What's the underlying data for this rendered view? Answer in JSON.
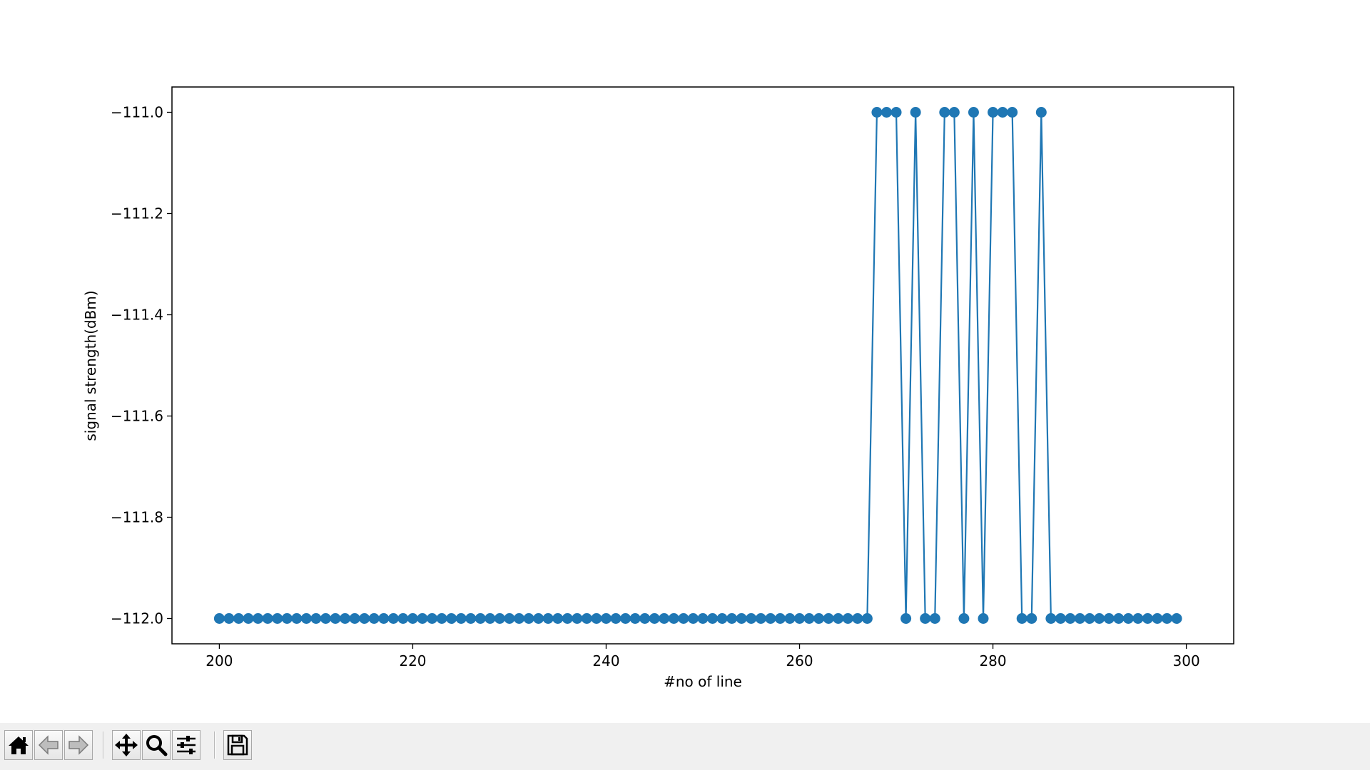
{
  "chart_data": {
    "type": "line",
    "title": "",
    "xlabel": "#no of line",
    "ylabel": "signal strength(dBm)",
    "xlim": [
      195.1,
      304.9
    ],
    "ylim": [
      -112.05,
      -110.95
    ],
    "xticks": [
      200,
      220,
      240,
      260,
      280,
      300
    ],
    "yticks": [
      -111.0,
      -111.2,
      -111.4,
      -111.6,
      -111.8,
      -112.0
    ],
    "ytick_labels": [
      "−111.0",
      "−111.2",
      "−111.4",
      "−111.6",
      "−111.8",
      "−112.0"
    ],
    "grid": false,
    "marker": "circle",
    "line_color": "#1f77b4",
    "x": [
      200,
      201,
      202,
      203,
      204,
      205,
      206,
      207,
      208,
      209,
      210,
      211,
      212,
      213,
      214,
      215,
      216,
      217,
      218,
      219,
      220,
      221,
      222,
      223,
      224,
      225,
      226,
      227,
      228,
      229,
      230,
      231,
      232,
      233,
      234,
      235,
      236,
      237,
      238,
      239,
      240,
      241,
      242,
      243,
      244,
      245,
      246,
      247,
      248,
      249,
      250,
      251,
      252,
      253,
      254,
      255,
      256,
      257,
      258,
      259,
      260,
      261,
      262,
      263,
      264,
      265,
      266,
      267,
      268,
      269,
      270,
      271,
      272,
      273,
      274,
      275,
      276,
      277,
      278,
      279,
      280,
      281,
      282,
      283,
      284,
      285,
      286,
      287,
      288,
      289,
      290,
      291,
      292,
      293,
      294,
      295,
      296,
      297,
      298,
      299
    ],
    "y": [
      -112,
      -112,
      -112,
      -112,
      -112,
      -112,
      -112,
      -112,
      -112,
      -112,
      -112,
      -112,
      -112,
      -112,
      -112,
      -112,
      -112,
      -112,
      -112,
      -112,
      -112,
      -112,
      -112,
      -112,
      -112,
      -112,
      -112,
      -112,
      -112,
      -112,
      -112,
      -112,
      -112,
      -112,
      -112,
      -112,
      -112,
      -112,
      -112,
      -112,
      -112,
      -112,
      -112,
      -112,
      -112,
      -112,
      -112,
      -112,
      -112,
      -112,
      -112,
      -112,
      -112,
      -112,
      -112,
      -112,
      -112,
      -112,
      -112,
      -112,
      -112,
      -112,
      -112,
      -112,
      -112,
      -112,
      -112,
      -112,
      -111,
      -111,
      -111,
      -112,
      -111,
      -112,
      -112,
      -111,
      -111,
      -112,
      -111,
      -112,
      -111,
      -111,
      -111,
      -112,
      -112,
      -111,
      -112,
      -112,
      -112,
      -112,
      -112,
      -112,
      -112,
      -112,
      -112,
      -112,
      -112,
      -112,
      -112,
      -112
    ]
  },
  "toolbar": {
    "buttons": [
      {
        "name": "home-button",
        "icon": "home-icon"
      },
      {
        "name": "back-button",
        "icon": "arrow-left-icon"
      },
      {
        "name": "forward-button",
        "icon": "arrow-right-icon"
      },
      {
        "name": "pan-button",
        "icon": "move-icon"
      },
      {
        "name": "zoom-button",
        "icon": "magnifier-icon"
      },
      {
        "name": "configure-subplots-button",
        "icon": "sliders-icon"
      },
      {
        "name": "save-button",
        "icon": "floppy-disk-icon"
      }
    ]
  }
}
